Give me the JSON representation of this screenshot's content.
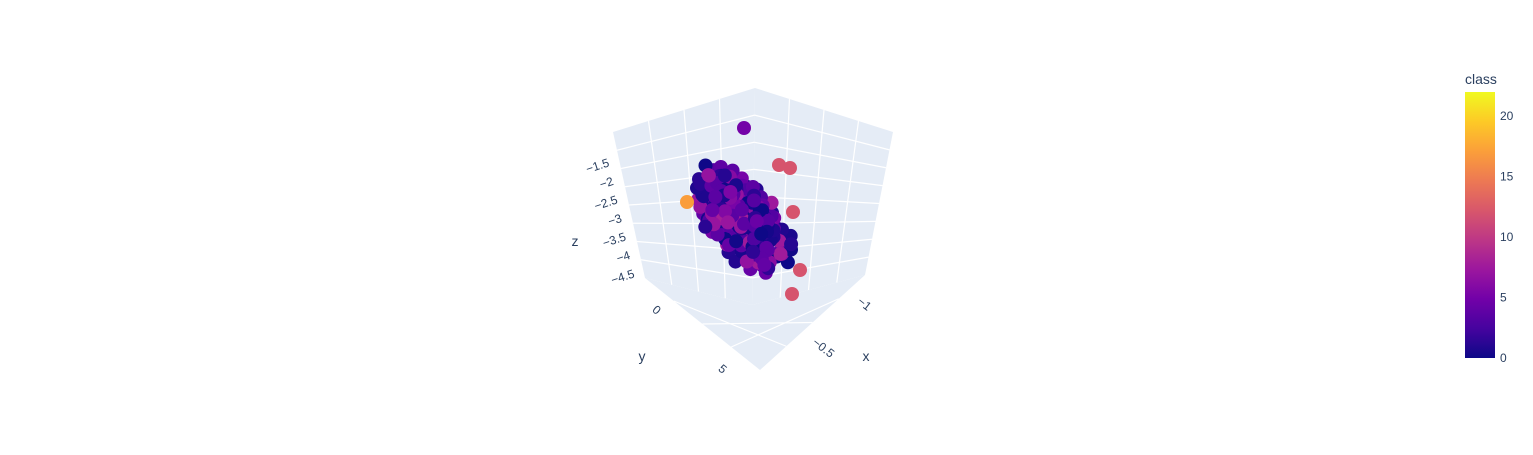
{
  "chart_data": {
    "type": "scatter3d",
    "title": "",
    "background": "#ffffff",
    "scene_background": "#e5ecf6",
    "grid_color": "#ffffff",
    "text_color": "#2a3f5f",
    "axes": {
      "x": {
        "label": "x",
        "ticks": [
          "−1",
          "−0.5"
        ]
      },
      "y": {
        "label": "y",
        "ticks": [
          "0",
          "5"
        ]
      },
      "z": {
        "label": "z",
        "ticks": [
          "−1.5",
          "−2",
          "−2.5",
          "−3",
          "−3.5",
          "−4",
          "−4.5"
        ]
      }
    },
    "colorbar": {
      "title": "class",
      "range": [
        0,
        22
      ],
      "ticks": [
        "0",
        "5",
        "10",
        "15",
        "20"
      ],
      "colorscale": [
        "#0d0887",
        "#46039f",
        "#7201a8",
        "#9c179e",
        "#bd3786",
        "#d8576b",
        "#ed7953",
        "#fb9f3a",
        "#fdca26",
        "#f0f921"
      ]
    },
    "highlighted_points": [
      {
        "class": 17
      },
      {
        "class": 12
      },
      {
        "class": 12
      },
      {
        "class": 12
      },
      {
        "class": 12
      }
    ]
  }
}
